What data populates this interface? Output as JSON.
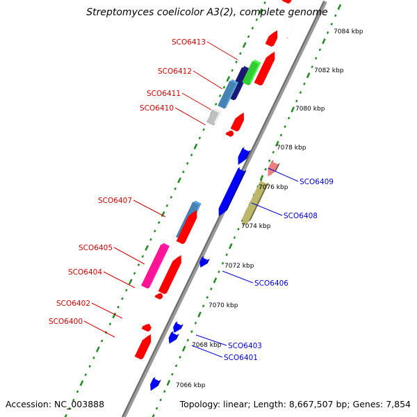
{
  "title": "Streptomyces coelicolor A3(2), complete genome",
  "accession": "Accession: NC_003888",
  "topology": "Topology: linear; Length: 8,667,507 bp; Genes: 7,854",
  "colors": {
    "forward_label": "#cc0000",
    "reverse_label": "#0000cc",
    "backbone": "#888888",
    "ticks": "#228b22"
  },
  "kbp_markers": [
    "7066 kbp",
    "7068 kbp",
    "7070 kbp",
    "7072 kbp",
    "7074 kbp",
    "7076 kbp",
    "7078 kbp",
    "7080 kbp",
    "7082 kbp",
    "7084 kbp"
  ],
  "genes_forward": [
    {
      "name": "SCO6413",
      "color": "#191970",
      "type": "box"
    },
    {
      "name": "SCO6412",
      "color": "#32cd32",
      "type": "box"
    },
    {
      "name": "SCO6411",
      "color": "#4682b4",
      "type": "box"
    },
    {
      "name": "SCO6410",
      "color": "#c0c0c0",
      "type": "box"
    },
    {
      "name": "SCO6407",
      "color": "#4682b4",
      "type": "box"
    },
    {
      "name": "SCO6405",
      "color": "#ff1493",
      "type": "box"
    },
    {
      "name": "SCO6404",
      "color": "#ff0000",
      "type": "arrow"
    },
    {
      "name": "SCO6402",
      "color": "#ff0000",
      "type": "arrow"
    },
    {
      "name": "SCO6400",
      "color": "#ff0000",
      "type": "arrow"
    }
  ],
  "genes_reverse": [
    {
      "name": "SCO6409",
      "color": "#f08080",
      "type": "box"
    },
    {
      "name": "SCO6408",
      "color": "#bdb76b",
      "type": "box"
    },
    {
      "name": "SCO6406",
      "color": "#0000ff",
      "type": "arrow"
    },
    {
      "name": "SCO6403",
      "color": "#0000ff",
      "type": "arrow"
    },
    {
      "name": "SCO6401",
      "color": "#0000ff",
      "type": "arrow"
    }
  ]
}
